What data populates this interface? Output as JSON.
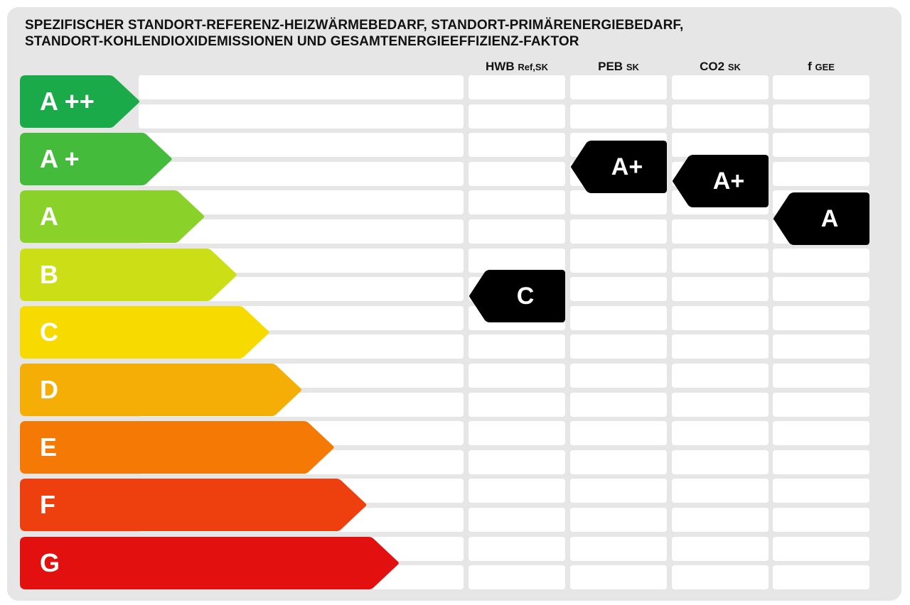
{
  "title_lines": [
    "SPEZIFISCHER STANDORT-REFERENZ-HEIZWÄRMEBEDARF, STANDORT-PRIMÄRENERGIEBEDARF,",
    "STANDORT-KOHLENDIOXIDEMISSIONEN UND GESAMTENERGIEEFFIZIENZ-FAKTOR"
  ],
  "columns": [
    {
      "main": "HWB",
      "sub": "Ref,SK"
    },
    {
      "main": "PEB",
      "sub": "SK"
    },
    {
      "main": "CO2",
      "sub": "SK"
    },
    {
      "main": "f",
      "sub": "GEE"
    }
  ],
  "chart_data": {
    "type": "table",
    "scale": [
      {
        "label": "A ++",
        "color": "#1aaa4a"
      },
      {
        "label": "A +",
        "color": "#45bb3c"
      },
      {
        "label": "A",
        "color": "#8ad229"
      },
      {
        "label": "B",
        "color": "#cbde16"
      },
      {
        "label": "C",
        "color": "#f7da00"
      },
      {
        "label": "D",
        "color": "#f5ae05"
      },
      {
        "label": "E",
        "color": "#f57a05"
      },
      {
        "label": "F",
        "color": "#ee400f"
      },
      {
        "label": "G",
        "color": "#e2100f"
      }
    ],
    "ratings": [
      {
        "column": "HWB Ref,SK",
        "rating": "C",
        "row_position": 7
      },
      {
        "column": "PEB SK",
        "rating": "A+",
        "row_position": 2.5
      },
      {
        "column": "CO2 SK",
        "rating": "A+",
        "row_position": 3
      },
      {
        "column": "f GEE",
        "rating": "A",
        "row_position": 4.3
      }
    ],
    "rows": 18
  },
  "colors": {
    "background": "#e6e6e6",
    "cell": "#ffffff",
    "marker": "#000000"
  }
}
